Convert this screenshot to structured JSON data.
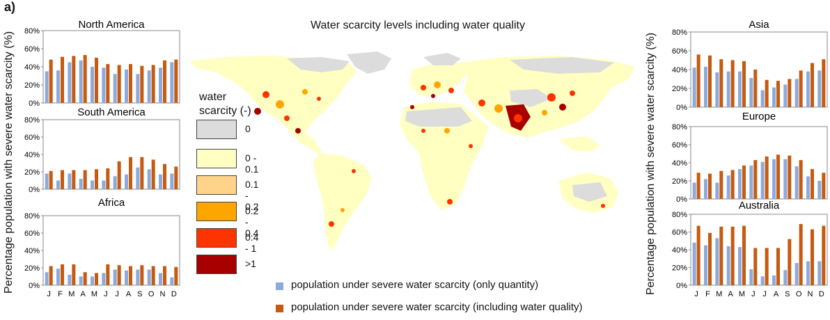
{
  "panel_label": "a)",
  "map_title": "Water scarcity levels including water quality",
  "y_axis_label": "Percentage population with severe water scarcity (%)",
  "colors": {
    "quantity": "#8eaadb",
    "quality": "#c55a11",
    "scarcity": [
      "#dcdcdc",
      "#ffffc2",
      "#ffd48a",
      "#ffa500",
      "#ff3300",
      "#a80000"
    ]
  },
  "map_legend": {
    "title_line1": "water",
    "title_line2": "scarcity (-)",
    "items": [
      "0",
      "0 - 0.1",
      "0.1 - 0.2",
      "0.2 - 0.4",
      "0.4 - 1",
      ">1"
    ]
  },
  "bottom_legend": [
    "population under severe water scarcity (only quantity)",
    "population under severe water scarcity (including water quality)"
  ],
  "chart_data": [
    {
      "type": "bar",
      "title": "North America",
      "categories": [
        "J",
        "F",
        "M",
        "A",
        "M",
        "J",
        "J",
        "A",
        "S",
        "O",
        "N",
        "D"
      ],
      "ylim": [
        0,
        80
      ],
      "yticks": [
        "0%",
        "20%",
        "40%",
        "60%",
        "80%"
      ],
      "series": [
        {
          "name": "population under severe water scarcity (only quantity)",
          "values": [
            35,
            36,
            45,
            47,
            40,
            39,
            32,
            37,
            32,
            36,
            39,
            45
          ]
        },
        {
          "name": "population under severe water scarcity (including water quality)",
          "values": [
            48,
            51,
            52,
            53,
            50,
            43,
            42,
            43,
            41,
            42,
            47,
            48
          ]
        }
      ]
    },
    {
      "type": "bar",
      "title": "South America",
      "categories": [
        "J",
        "F",
        "M",
        "A",
        "M",
        "J",
        "J",
        "A",
        "S",
        "O",
        "N",
        "D"
      ],
      "ylim": [
        0,
        80
      ],
      "yticks": [
        "0%",
        "20%",
        "40%",
        "60%",
        "80%"
      ],
      "series": [
        {
          "name": "population under severe water scarcity (only quantity)",
          "values": [
            18,
            10,
            18,
            12,
            10,
            10,
            15,
            17,
            25,
            23,
            17,
            18
          ]
        },
        {
          "name": "population under severe water scarcity (including water quality)",
          "values": [
            21,
            22,
            22,
            22,
            23,
            24,
            32,
            37,
            37,
            34,
            29,
            26
          ]
        }
      ]
    },
    {
      "type": "bar",
      "title": "Africa",
      "categories": [
        "J",
        "F",
        "M",
        "A",
        "M",
        "J",
        "J",
        "A",
        "S",
        "O",
        "N",
        "D"
      ],
      "ylim": [
        0,
        80
      ],
      "yticks": [
        "0%",
        "20%",
        "40%",
        "60%",
        "80%"
      ],
      "series": [
        {
          "name": "population under severe water scarcity (only quantity)",
          "values": [
            15,
            19,
            12,
            10,
            10,
            14,
            18,
            17,
            18,
            18,
            14,
            9
          ]
        },
        {
          "name": "population under severe water scarcity (including water quality)",
          "values": [
            22,
            24,
            24,
            15,
            14,
            24,
            23,
            22,
            23,
            22,
            22,
            21
          ]
        }
      ]
    },
    {
      "type": "bar",
      "title": "Asia",
      "categories": [
        "J",
        "F",
        "M",
        "A",
        "M",
        "J",
        "J",
        "A",
        "S",
        "O",
        "N",
        "D"
      ],
      "ylim": [
        0,
        80
      ],
      "yticks": [
        "0%",
        "20%",
        "40%",
        "60%",
        "80%"
      ],
      "series": [
        {
          "name": "population under severe water scarcity (only quantity)",
          "values": [
            42,
            43,
            37,
            38,
            38,
            31,
            18,
            21,
            24,
            30,
            38,
            39
          ]
        },
        {
          "name": "population under severe water scarcity (including water quality)",
          "values": [
            56,
            55,
            51,
            50,
            49,
            40,
            29,
            28,
            30,
            39,
            47,
            51
          ]
        }
      ]
    },
    {
      "type": "bar",
      "title": "Europe",
      "categories": [
        "J",
        "F",
        "M",
        "A",
        "M",
        "J",
        "J",
        "A",
        "S",
        "O",
        "N",
        "D"
      ],
      "ylim": [
        0,
        80
      ],
      "yticks": [
        "0%",
        "20%",
        "40%",
        "60%",
        "80%"
      ],
      "series": [
        {
          "name": "population under severe water scarcity (only quantity)",
          "values": [
            18,
            22,
            18,
            26,
            33,
            37,
            41,
            44,
            44,
            36,
            25,
            20
          ]
        },
        {
          "name": "population under severe water scarcity (including water quality)",
          "values": [
            29,
            28,
            31,
            32,
            37,
            43,
            47,
            49,
            48,
            43,
            33,
            29
          ]
        }
      ]
    },
    {
      "type": "bar",
      "title": "Australia",
      "categories": [
        "J",
        "F",
        "M",
        "A",
        "M",
        "J",
        "J",
        "A",
        "S",
        "O",
        "N",
        "D"
      ],
      "ylim": [
        0,
        80
      ],
      "yticks": [
        "0%",
        "20%",
        "40%",
        "60%",
        "80%"
      ],
      "series": [
        {
          "name": "population under severe water scarcity (only quantity)",
          "values": [
            48,
            45,
            53,
            44,
            43,
            18,
            10,
            11,
            17,
            25,
            27,
            27
          ]
        },
        {
          "name": "population under severe water scarcity (including water quality)",
          "values": [
            67,
            59,
            66,
            66,
            67,
            42,
            42,
            42,
            52,
            69,
            63,
            67
          ]
        }
      ]
    }
  ]
}
